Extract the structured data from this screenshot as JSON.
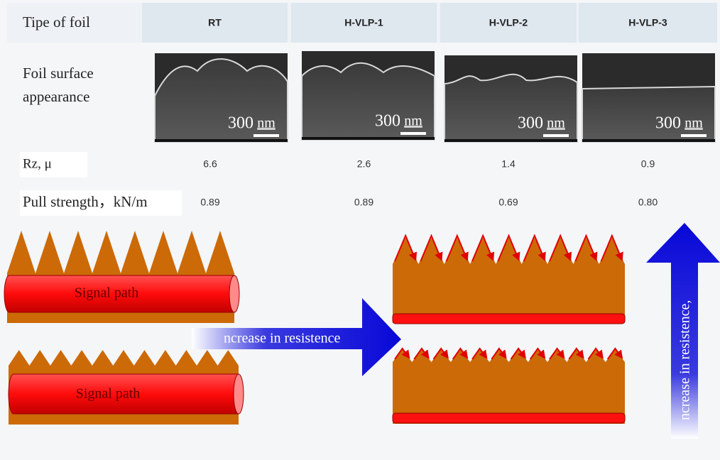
{
  "table": {
    "header": [
      "Tipe of foil",
      "RT",
      "H-VLP-1",
      "H-VLP-2",
      "H-VLP-3"
    ],
    "appearance_label": "Foil surface appearance",
    "scale_bars": [
      {
        "value": "300",
        "unit": "nm"
      },
      {
        "value": "300",
        "unit": "nm"
      },
      {
        "value": "300",
        "unit": "nm"
      },
      {
        "value": "300",
        "unit": "nm"
      }
    ],
    "rows": [
      [
        "Rz, μ",
        "6.6",
        "2.6",
        "1.4",
        "0.9"
      ],
      [
        "Pull strength，kN/m",
        "0.89",
        "0.89",
        "0.69",
        "0.80"
      ]
    ]
  },
  "diagram": {
    "signal_labels": [
      "Signal path",
      "Signal path"
    ],
    "arrow_labels": [
      "ncrease in resistence",
      "ncrease in resistence,"
    ]
  }
}
